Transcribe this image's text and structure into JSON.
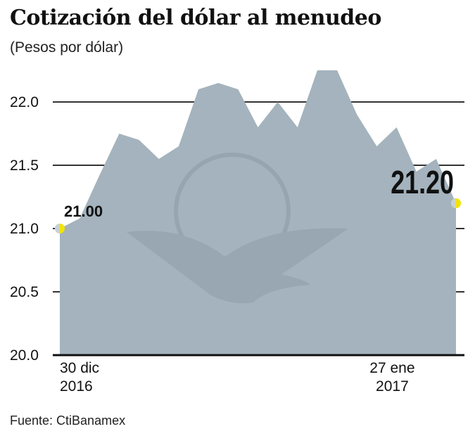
{
  "title": "Cotización del dólar al menudeo",
  "subtitle": "(Pesos por dólar)",
  "source": "Fuente: CtiBanamex",
  "chart_data": {
    "type": "area",
    "title": "Cotización del dólar al menudeo",
    "ylabel": "(Pesos por dólar)",
    "ylim": [
      20.0,
      22.25
    ],
    "yticks": [
      "20.0",
      "20.5",
      "21.0",
      "21.5",
      "22.0"
    ],
    "grid": true,
    "x_labels": [
      {
        "index": 0,
        "line1": "30 dic",
        "line2": "2016"
      },
      {
        "index": 16,
        "line1": "27 ene",
        "line2": "2017"
      }
    ],
    "values": [
      21.0,
      21.08,
      21.42,
      21.75,
      21.7,
      21.55,
      21.65,
      22.1,
      22.15,
      22.1,
      21.8,
      22.0,
      21.8,
      22.25,
      22.25,
      21.9,
      21.65,
      21.8,
      21.45,
      21.55,
      21.2
    ],
    "annotations": [
      {
        "index": 0,
        "text": "21.00"
      },
      {
        "index": 20,
        "text": "21.20"
      }
    ],
    "colors": {
      "area": "#a4b3bd",
      "grid": "#333333",
      "marker": "#f2e400"
    }
  }
}
